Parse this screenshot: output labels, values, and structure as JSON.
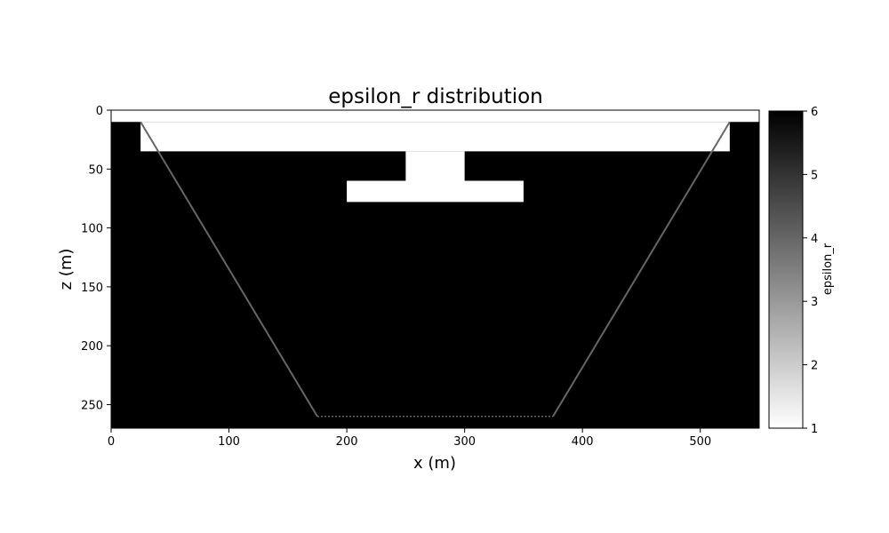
{
  "chart_data": {
    "type": "heatmap",
    "title": "epsilon_r distribution",
    "xlabel": "x (m)",
    "ylabel": "z (m)",
    "xlim": [
      0,
      550
    ],
    "zlim": [
      0,
      270
    ],
    "z_axis_inverted": true,
    "x_ticks": [
      0,
      100,
      200,
      300,
      400,
      500
    ],
    "x_tick_labels": [
      "0",
      "100",
      "200",
      "300",
      "400",
      "500"
    ],
    "z_ticks": [
      0,
      50,
      100,
      150,
      200,
      250
    ],
    "z_tick_labels": [
      "0",
      "50",
      "100",
      "150",
      "200",
      "250"
    ],
    "colormap": "gray_r",
    "colorbar": {
      "label": "epsilon_r",
      "range": [
        1,
        6
      ],
      "ticks": [
        1,
        2,
        3,
        4,
        5,
        6
      ],
      "tick_labels": [
        "1",
        "2",
        "3",
        "4",
        "5",
        "6"
      ],
      "placement": "right"
    },
    "background_value": 6,
    "regions": [
      {
        "name": "air-top",
        "epsilon_r": 1,
        "points": [
          [
            0,
            0
          ],
          [
            550,
            0
          ],
          [
            550,
            10
          ],
          [
            0,
            10
          ]
        ]
      },
      {
        "name": "air-upper-band",
        "epsilon_r": 1,
        "points": [
          [
            25,
            10
          ],
          [
            525,
            10
          ],
          [
            525,
            35
          ],
          [
            25,
            35
          ]
        ]
      },
      {
        "name": "air-neck",
        "epsilon_r": 1,
        "points": [
          [
            250,
            35
          ],
          [
            300,
            35
          ],
          [
            300,
            60
          ],
          [
            250,
            60
          ]
        ]
      },
      {
        "name": "air-crossbar",
        "epsilon_r": 1,
        "points": [
          [
            200,
            60
          ],
          [
            350,
            60
          ],
          [
            350,
            78
          ],
          [
            200,
            78
          ]
        ]
      }
    ],
    "boundary_lines": [
      {
        "name": "trench-left-wall",
        "epsilon_r": 4,
        "points": [
          [
            25,
            10
          ],
          [
            175,
            260
          ]
        ]
      },
      {
        "name": "trench-right-wall",
        "epsilon_r": 4,
        "points": [
          [
            375,
            260
          ],
          [
            525,
            10
          ]
        ]
      },
      {
        "name": "trench-bottom",
        "epsilon_r": 4,
        "dashed": true,
        "points": [
          [
            175,
            260
          ],
          [
            375,
            260
          ]
        ]
      }
    ]
  }
}
